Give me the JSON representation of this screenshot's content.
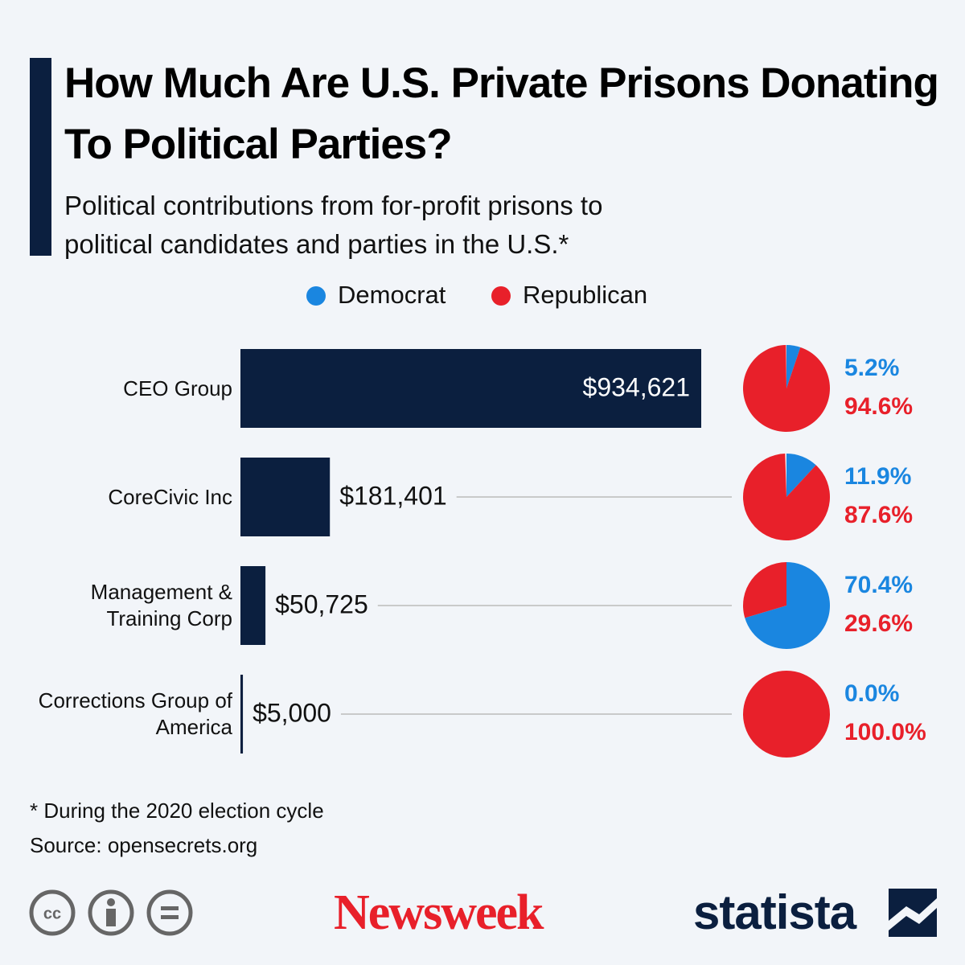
{
  "chart_data": [
    {
      "type": "bar",
      "title": "How Much Are U.S. Private Prisons Donating To Political Parties?",
      "subtitle": "Political contributions from for-profit prisons to political candidates and parties in the U.S.*",
      "categories": [
        "CEO Group",
        "CoreCivic Inc",
        "Management & Training Corp",
        "Corrections Group of America"
      ],
      "values": [
        934621,
        181401,
        50725,
        5000
      ],
      "value_labels": [
        "$934,621",
        "$181,401",
        "$50,725",
        "$5,000"
      ],
      "color": "#0b1f3f"
    },
    {
      "type": "pie",
      "series": [
        {
          "name": "Democrat",
          "color": "#1a86e0",
          "values": [
            5.2,
            11.9,
            70.4,
            0.0
          ],
          "value_labels": [
            "5.2%",
            "11.9%",
            "70.4%",
            "0.0%"
          ]
        },
        {
          "name": "Republican",
          "color": "#e8202a",
          "values": [
            94.6,
            87.6,
            29.6,
            100.0
          ],
          "value_labels": [
            "94.6%",
            "87.6%",
            "29.6%",
            "100.0%"
          ]
        }
      ]
    }
  ],
  "footnote": "* During the 2020 election cycle",
  "source": "Source: opensecrets.org",
  "brands": [
    "Newsweek",
    "statista"
  ]
}
